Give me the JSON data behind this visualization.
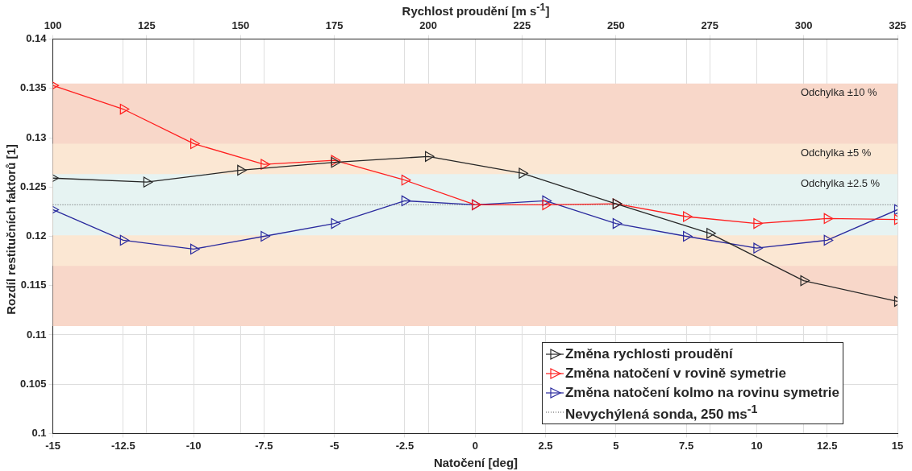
{
  "chart_data": {
    "type": "line",
    "xlabel": "Natočení [deg]",
    "x2label": "Rychlost proudění [m s$^{-1}$]",
    "ylabel": "Rozdíl restitučních faktorů [1]",
    "xlim": [
      -15,
      15
    ],
    "xticks": [
      -15,
      -12.5,
      -10,
      -7.5,
      -5,
      -2.5,
      0,
      2.5,
      5,
      7.5,
      10,
      12.5,
      15
    ],
    "x2lim": [
      100,
      325
    ],
    "x2ticks": [
      100,
      125,
      150,
      175,
      200,
      225,
      250,
      275,
      300,
      325
    ],
    "ylim": [
      0.1,
      0.14
    ],
    "yticks": [
      0.1,
      0.105,
      0.11,
      0.115,
      0.12,
      0.125,
      0.13,
      0.135,
      0.14
    ],
    "grid": true,
    "legend": "bottom right",
    "marker": "triangle",
    "line_style": "solid",
    "series": [
      {
        "name": "Změna rychlosti proudění",
        "color": "#262626",
        "axis": "x2",
        "x": [
          100,
          125,
          150,
          175,
          200,
          225,
          250,
          275,
          300,
          325
        ],
        "values": [
          0.1259,
          0.1255,
          0.1267,
          0.1275,
          0.1281,
          0.1264,
          0.1233,
          0.1203,
          0.1155,
          0.1134
        ]
      },
      {
        "name": "Změna natočení v rovině symetrie",
        "color": "#ff1f1f",
        "x": [
          -15,
          -12.5,
          -10,
          -7.5,
          -5,
          -2.5,
          0,
          2.5,
          5,
          7.5,
          10,
          12.5,
          15
        ],
        "values": [
          0.1353,
          0.1329,
          0.1294,
          0.1273,
          0.1277,
          0.1257,
          0.1232,
          0.1232,
          0.1233,
          0.122,
          0.1213,
          0.1218,
          0.1217
        ]
      },
      {
        "name": "Změna natočení kolmo na rovinu symetrie",
        "color": "#2a2a9e",
        "x": [
          -15,
          -12.5,
          -10,
          -7.5,
          -5,
          -2.5,
          0,
          2.5,
          5,
          7.5,
          10,
          12.5,
          15
        ],
        "values": [
          0.1227,
          0.1196,
          0.1187,
          0.12,
          0.1213,
          0.1236,
          0.1232,
          0.1236,
          0.1213,
          0.12,
          0.1188,
          0.1196,
          0.1227
        ]
      }
    ],
    "ref_lines": [
      {
        "axis": "y",
        "value": 0.1232,
        "label": "Nevychýlená sonda, 250 ms$^{-1}$",
        "color": "#555555",
        "line_style": "dotted"
      }
    ],
    "bands": [
      {
        "axis": "y",
        "from": 0.1109,
        "to": 0.1355,
        "label": "Odchylka ±10 %",
        "color": "#f8d7c9"
      },
      {
        "axis": "y",
        "from": 0.117,
        "to": 0.1294,
        "label": "Odchylka ±5 %",
        "color": "#fbe7d3"
      },
      {
        "axis": "y",
        "from": 0.1201,
        "to": 0.1263,
        "label": "Odchylka ±2.5 %",
        "color": "#e6f3f2"
      }
    ]
  }
}
